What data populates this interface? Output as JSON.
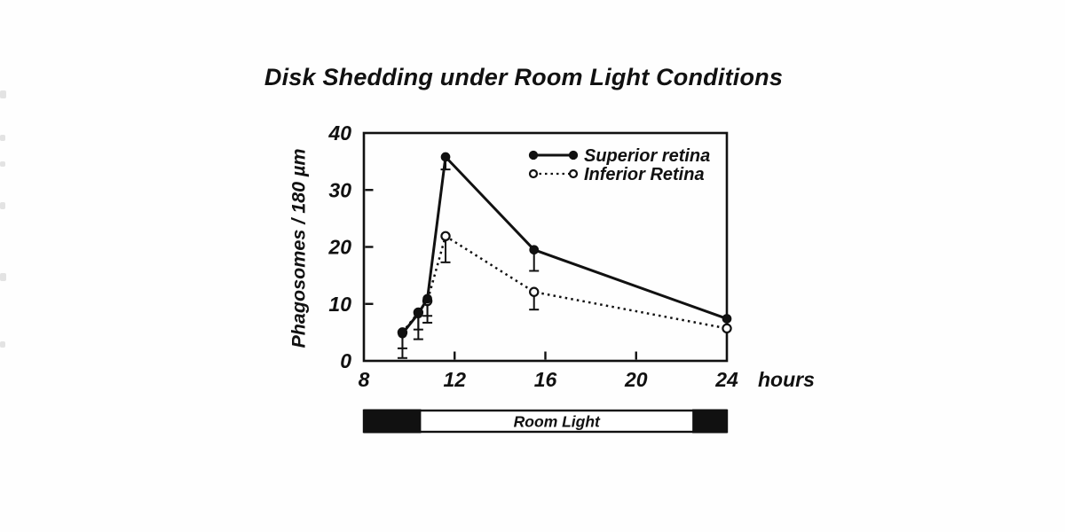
{
  "title": "Disk Shedding under Room Light Conditions",
  "colors": {
    "ink": "#111111",
    "background": "#ffffff",
    "bar_fill": "#ffffff",
    "dark_fill": "#111111"
  },
  "chart_data": {
    "type": "line",
    "title": "Disk Shedding under Room Light Conditions",
    "xlabel": "hours",
    "ylabel": "Phagosomes / 180 µm",
    "x_axis": {
      "min": 8,
      "max": 24,
      "tick_labels": [
        8,
        12,
        16,
        20,
        24
      ],
      "tick_marks": [
        12,
        16,
        20
      ]
    },
    "y_axis": {
      "min": 0,
      "max": 40,
      "tick_labels": [
        0,
        10,
        20,
        30,
        40
      ],
      "tick_marks": [
        10,
        20,
        30
      ]
    },
    "grid": false,
    "legend_position": "top-right",
    "series": [
      {
        "name": "Superior retina",
        "marker": "filled-circle",
        "line": "solid",
        "x": [
          9.7,
          10.4,
          10.8,
          11.6,
          15.5,
          24
        ],
        "y": [
          4.8,
          8.3,
          10.9,
          35.8,
          19.5,
          7.4
        ],
        "err_low": [
          4.3,
          4.5,
          4.2,
          2.2,
          3.7,
          0
        ]
      },
      {
        "name": "Inferior Retina",
        "marker": "open-circle",
        "line": "dashed",
        "x": [
          9.7,
          10.4,
          10.8,
          11.6,
          15.5,
          24
        ],
        "y": [
          5.0,
          8.5,
          10.5,
          21.9,
          12.1,
          5.7
        ],
        "err_low": [
          2.8,
          3.0,
          2.6,
          4.6,
          3.1,
          0
        ]
      }
    ],
    "light_bar": {
      "label": "Room Light",
      "span": [
        8,
        24
      ],
      "dark_periods": [
        [
          8,
          10.5
        ],
        [
          22.5,
          24
        ]
      ]
    }
  }
}
